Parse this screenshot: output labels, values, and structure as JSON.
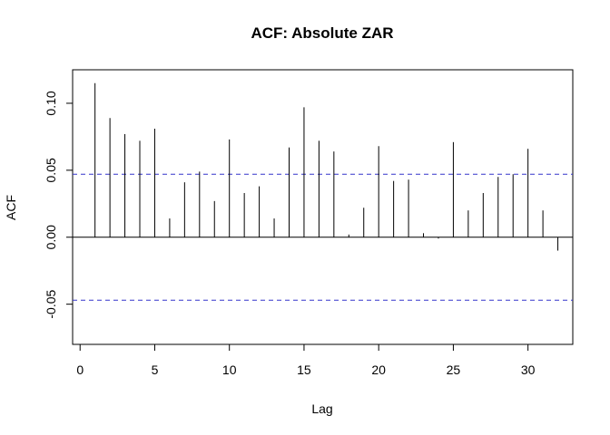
{
  "chart_data": {
    "type": "bar",
    "title": "ACF: Absolute ZAR",
    "xlabel": "Lag",
    "ylabel": "ACF",
    "xlim": [
      -0.5,
      33
    ],
    "ylim": [
      -0.08,
      0.125
    ],
    "x_ticks": [
      0,
      5,
      10,
      15,
      20,
      25,
      30
    ],
    "x_tick_labels": [
      "0",
      "5",
      "10",
      "15",
      "20",
      "25",
      "30"
    ],
    "y_ticks": [
      -0.05,
      0.0,
      0.05,
      0.1
    ],
    "y_tick_labels": [
      "-0.05",
      "0.00",
      "0.05",
      "0.10"
    ],
    "confidence_bound": 0.047,
    "confidence_color": "#3333cc",
    "zero_line": 0,
    "lags": [
      1,
      2,
      3,
      4,
      5,
      6,
      7,
      8,
      9,
      10,
      11,
      12,
      13,
      14,
      15,
      16,
      17,
      18,
      19,
      20,
      21,
      22,
      23,
      24,
      25,
      26,
      27,
      28,
      29,
      30,
      31,
      32
    ],
    "values": [
      0.115,
      0.089,
      0.077,
      0.072,
      0.081,
      0.014,
      0.041,
      0.049,
      0.027,
      0.073,
      0.033,
      0.038,
      0.014,
      0.067,
      0.097,
      0.072,
      0.064,
      0.002,
      0.022,
      0.068,
      0.042,
      0.043,
      0.003,
      -0.001,
      0.071,
      0.02,
      0.033,
      0.045,
      0.047,
      0.066,
      0.02,
      -0.01
    ],
    "grid": false,
    "legend": "none"
  }
}
